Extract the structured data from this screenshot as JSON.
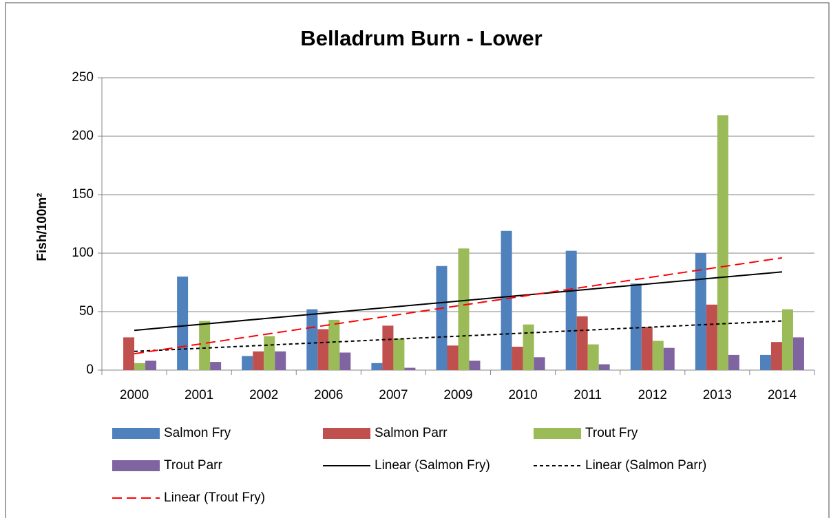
{
  "chart_data": {
    "type": "bar",
    "title": "Belladrum Burn - Lower",
    "y_label": "Fish/100m²",
    "categories": [
      "2000",
      "2001",
      "2002",
      "2006",
      "2007",
      "2009",
      "2010",
      "2011",
      "2012",
      "2013",
      "2014"
    ],
    "series": [
      {
        "name": "Salmon Fry",
        "color": "#4f81bd",
        "values": [
          0,
          80,
          12,
          52,
          6,
          89,
          119,
          102,
          74,
          100,
          13
        ]
      },
      {
        "name": "Salmon Parr",
        "color": "#c0504d",
        "values": [
          28,
          0,
          16,
          35,
          38,
          21,
          20,
          46,
          37,
          56,
          24
        ]
      },
      {
        "name": "Trout Fry",
        "color": "#9bbb59",
        "values": [
          6,
          42,
          29,
          43,
          27,
          104,
          39,
          22,
          25,
          218,
          52
        ]
      },
      {
        "name": "Trout Parr",
        "color": "#8064a2",
        "values": [
          8,
          7,
          16,
          15,
          2,
          8,
          11,
          5,
          19,
          13,
          28
        ]
      }
    ],
    "trendlines": [
      {
        "name": "Linear (Salmon Fry)",
        "color": "#000000",
        "dash": "solid",
        "values": [
          34,
          84
        ]
      },
      {
        "name": "Linear (Salmon Parr)",
        "color": "#000000",
        "dash": "dotted",
        "values": [
          16,
          42
        ]
      },
      {
        "name": "Linear (Trout Fry)",
        "color": "#ff0000",
        "dash": "dashed",
        "values": [
          14,
          96
        ]
      }
    ],
    "ylim": [
      0,
      250
    ],
    "yticks": [
      0,
      50,
      100,
      150,
      200,
      250
    ],
    "grid": true,
    "legend": "bottom"
  }
}
